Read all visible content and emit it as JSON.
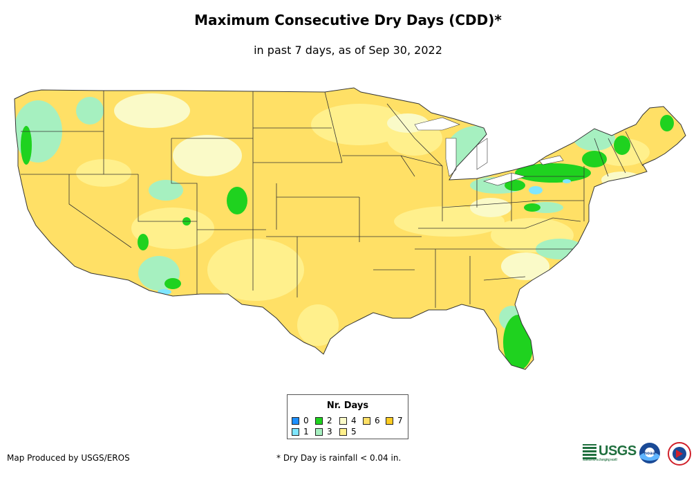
{
  "title": "Maximum Consecutive Dry Days (CDD)*",
  "subtitle": "in past 7 days, as of Sep 30, 2022",
  "legend": {
    "title": "Nr. Days",
    "items": [
      {
        "label": "0",
        "color": "#1e90ff"
      },
      {
        "label": "1",
        "color": "#7fe6ff"
      },
      {
        "label": "2",
        "color": "#1fd21f"
      },
      {
        "label": "3",
        "color": "#a6f0c0"
      },
      {
        "label": "4",
        "color": "#fafac8"
      },
      {
        "label": "5",
        "color": "#fff08c"
      },
      {
        "label": "6",
        "color": "#ffe066"
      },
      {
        "label": "7",
        "color": "#ffcc22"
      }
    ]
  },
  "credit": "Map Produced by USGS/EROS",
  "footnote": "* Dry Day is rainfall < 0.04 in.",
  "logos": {
    "usgs": "USGS",
    "usgs_tagline": "science for a changing world",
    "noaa": "noaa",
    "nws": "National Weather Service"
  }
}
